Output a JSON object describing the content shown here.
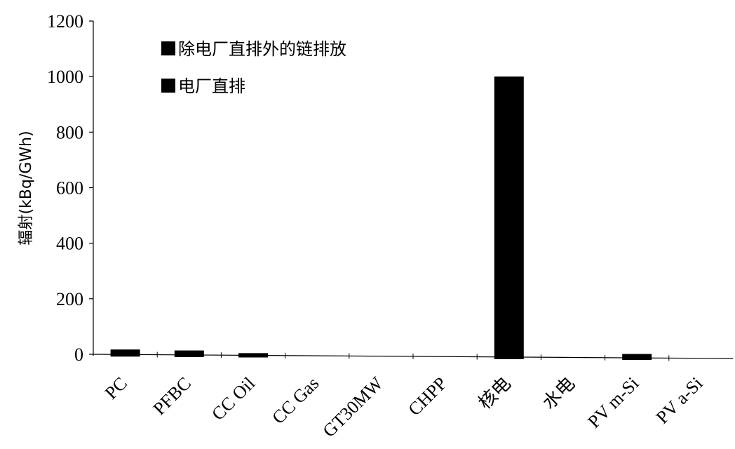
{
  "chart_data": {
    "type": "bar",
    "title": "",
    "xlabel": "",
    "ylabel": "辐射(kBq/GWh)",
    "ylim": [
      0,
      1200
    ],
    "yticks": [
      0,
      200,
      400,
      600,
      800,
      1000,
      1200
    ],
    "categories": [
      "PC",
      "PFBC",
      "CC Oil",
      "CC Gas",
      "GT30MW",
      "CHPP",
      "核电",
      "水电",
      "PV m-Si",
      "PV a-Si"
    ],
    "series": [
      {
        "name": "除电厂直排外的链排放",
        "values": [
          18,
          16,
          8,
          0,
          0,
          0,
          1010,
          0,
          14,
          0
        ],
        "color": "#000000"
      },
      {
        "name": "电厂直排",
        "values": [
          0,
          0,
          0,
          0,
          0,
          0,
          0,
          0,
          0,
          0
        ],
        "color": "#000000"
      }
    ],
    "grid": false,
    "legend": "top-left"
  }
}
